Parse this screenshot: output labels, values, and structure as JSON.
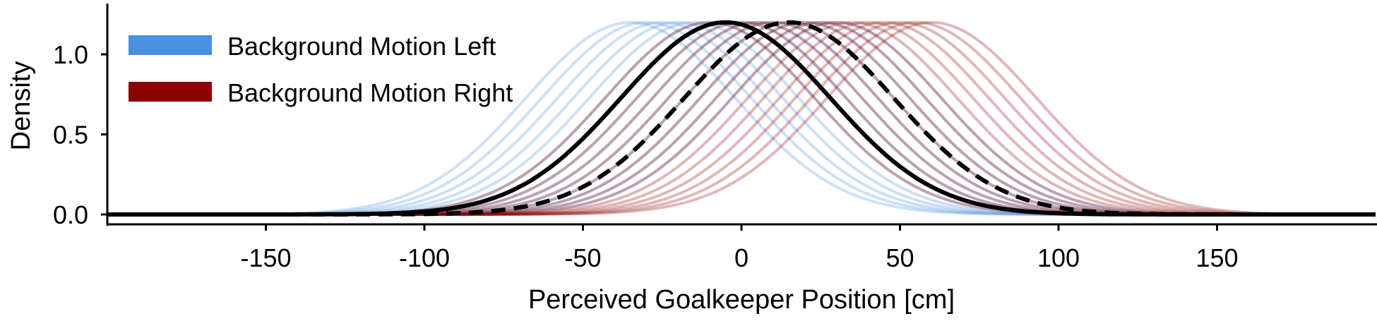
{
  "chart_data": {
    "type": "line",
    "xlabel": "Perceived Goalkeeper Position [cm]",
    "ylabel": "Density",
    "xlim": [
      -200,
      200
    ],
    "ylim": [
      -0.05,
      1.25
    ],
    "xticks": [
      -150,
      -100,
      -50,
      0,
      50,
      100,
      150
    ],
    "xtick_labels": [
      "-150",
      "-100",
      "-50",
      "0",
      "50",
      "100",
      "150"
    ],
    "yticks": [
      0.0,
      0.5,
      1.0
    ],
    "ytick_labels": [
      "0.0",
      "0.5",
      "1.0"
    ],
    "grid": false,
    "legend_position": "top-left",
    "legend": [
      {
        "label": "Background Motion Left",
        "color": "#4a8fe0"
      },
      {
        "label": "Background Motion Right",
        "color": "#8b0000"
      }
    ],
    "series": [
      {
        "name": "Background Motion Left",
        "color": "#4a8fe0",
        "peak": 1.2,
        "mean": -5,
        "sd": 33,
        "sample_means": [
          -35,
          -30,
          -25,
          -20,
          -15,
          -10,
          -5,
          0,
          5,
          10,
          15,
          20,
          25,
          30
        ]
      },
      {
        "name": "Background Motion Right",
        "color": "#8b0000",
        "peak": 1.2,
        "mean": 15,
        "sd": 33,
        "sample_means": [
          -10,
          -5,
          0,
          5,
          10,
          15,
          20,
          25,
          30,
          35,
          40,
          45,
          50,
          55,
          60
        ]
      }
    ],
    "mean_curves": [
      {
        "style": "solid",
        "color": "#000000",
        "mean": -5,
        "sd": 33,
        "peak": 1.2
      },
      {
        "style": "dashed",
        "color": "#000000",
        "mean": 15,
        "sd": 33,
        "peak": 1.2
      }
    ]
  }
}
